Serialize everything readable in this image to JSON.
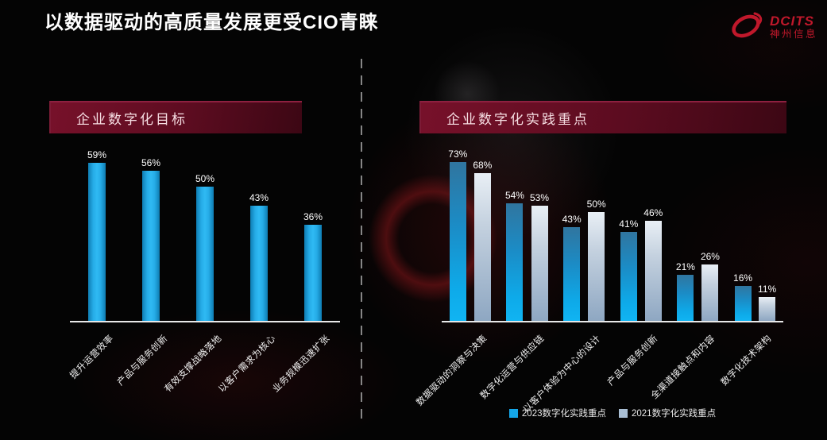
{
  "title": "以数据驱动的高质量发展更受CIO青睐",
  "logo": {
    "brand": "DCITS",
    "brand_cn": "神州信息",
    "accent_color": "#c0182b"
  },
  "chart_data": [
    {
      "type": "bar",
      "title": "企业数字化目标",
      "categories": [
        "提升运营效率",
        "产品与服务创新",
        "有效支撑战略落地",
        "以客户需求为核心",
        "业务规模迅速扩张"
      ],
      "values": [
        59,
        56,
        50,
        43,
        36
      ],
      "value_suffix": "%",
      "bar_color": "#1ba6e4",
      "ylim": [
        0,
        65
      ],
      "grid": false,
      "legend_position": "none"
    },
    {
      "type": "bar",
      "title": "企业数字化实践重点",
      "categories": [
        "数据驱动的洞察与决策",
        "数字化运营与供应链",
        "以客户体验为中心的设计",
        "产品与服务创新",
        "全渠道接触点和内容",
        "数字化技术架构"
      ],
      "series": [
        {
          "name": "2023数字化实践重点",
          "values": [
            73,
            54,
            43,
            41,
            21,
            16
          ],
          "color": "#14a6e8"
        },
        {
          "name": "2021数字化实践重点",
          "values": [
            68,
            53,
            50,
            46,
            26,
            11
          ],
          "color": "#a9bed4"
        }
      ],
      "value_suffix": "%",
      "ylim": [
        0,
        80
      ],
      "grid": false,
      "legend_position": "bottom"
    }
  ]
}
